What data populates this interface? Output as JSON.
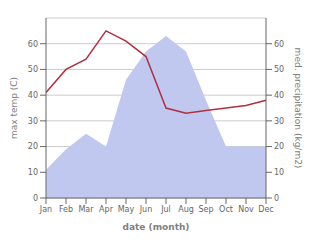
{
  "chart_data": {
    "type": "line",
    "xlabel": "date (month)",
    "ylabel": "max temp (C)",
    "y2label": "med. precipitation (kg/m2)",
    "categories": [
      "Jan",
      "Feb",
      "Mar",
      "Apr",
      "May",
      "Jun",
      "Jul",
      "Aug",
      "Sep",
      "Oct",
      "Nov",
      "Dec"
    ],
    "series": [
      {
        "type": "area",
        "axis": "y2",
        "color": "#c0c8f0",
        "values": [
          11,
          19,
          25,
          20,
          46,
          57,
          63,
          57,
          38,
          20,
          20,
          20
        ]
      },
      {
        "type": "line",
        "color": "#b03040",
        "values": [
          41,
          50,
          54,
          65,
          61,
          55,
          35,
          33,
          34,
          35,
          36,
          38
        ]
      }
    ],
    "ylim": [
      0,
      70
    ],
    "yticks": [
      0,
      10,
      20,
      30,
      40,
      50,
      60
    ],
    "y2lim": [
      0,
      70
    ],
    "y2ticks": [
      0,
      10,
      20,
      30,
      40,
      50,
      60
    ],
    "grid": true
  }
}
